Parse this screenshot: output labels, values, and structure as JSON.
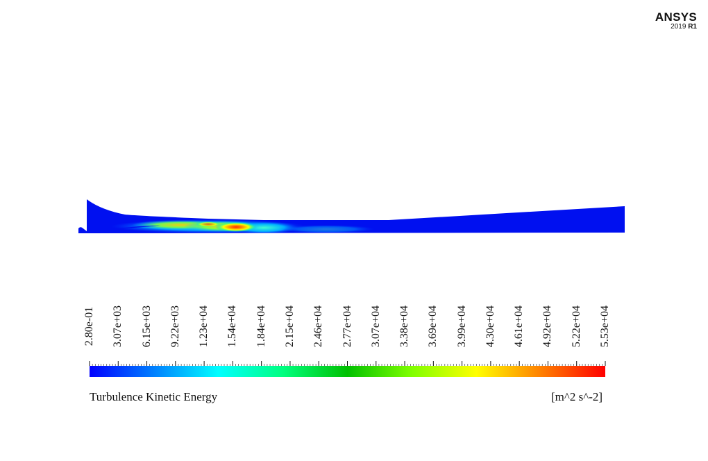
{
  "logo": {
    "brand": "ANSYS",
    "version_year": "2019",
    "version_release": "R1"
  },
  "colorbar": {
    "title": "Turbulence Kinetic Energy",
    "units": "[m^2 s^-2]",
    "min": 0.28,
    "max": 55300,
    "tick_labels": [
      "2.80e-01",
      "3.07e+03",
      "6.15e+03",
      "9.22e+03",
      "1.23e+04",
      "1.54e+04",
      "1.84e+04",
      "2.15e+04",
      "2.46e+04",
      "2.77e+04",
      "3.07e+04",
      "3.38e+04",
      "3.69e+04",
      "3.99e+04",
      "4.30e+04",
      "4.61e+04",
      "4.92e+04",
      "5.22e+04",
      "5.53e+04"
    ],
    "colors": [
      "#0000ff",
      "#0080ff",
      "#00ffff",
      "#00ff80",
      "#00c000",
      "#80ff00",
      "#ffff00",
      "#ff8000",
      "#ff0000"
    ]
  }
}
